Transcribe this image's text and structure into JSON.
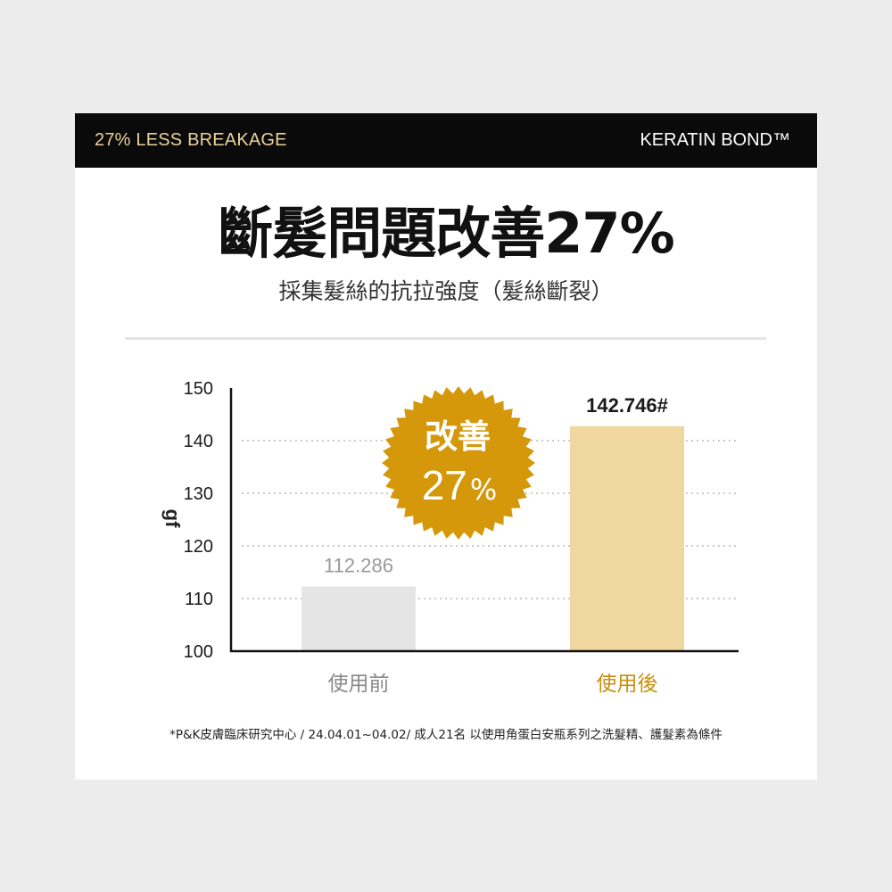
{
  "header": {
    "left_label": "27% LESS BREAKAGE",
    "right_label": "KERATIN BOND™"
  },
  "headline": "斷髮問題改善27%",
  "subtitle": "採集髮絲的抗拉強度（髮絲斷裂）",
  "badge": {
    "line1": "改善",
    "value": "27",
    "unit": "%",
    "color": "#d4980a"
  },
  "footnote": "*P&K皮膚臨床研究中心 / 24.04.01~04.02/ 成人21名 以使用角蛋白安瓶系列之洗髮精、護髮素為條件",
  "chart_data": {
    "type": "bar",
    "ylabel": "gf",
    "ylim": [
      100,
      150
    ],
    "yticks": [
      100,
      110,
      120,
      130,
      140,
      150
    ],
    "grid": "dotted, 110–140",
    "categories": [
      "使用前",
      "使用後"
    ],
    "values": [
      112.286,
      142.746
    ],
    "value_labels": [
      "112.286",
      "142.746#"
    ],
    "bar_colors": [
      "#e5e5e5",
      "#efd79f"
    ],
    "label_colors": [
      "#999999",
      "#1a1a1a"
    ],
    "category_colors": [
      "#8a8a8a",
      "#c8900c"
    ]
  }
}
